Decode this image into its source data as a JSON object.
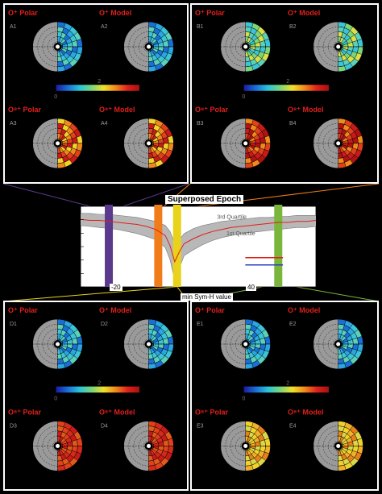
{
  "panels": {
    "A": {
      "color": "#5b3a8e",
      "maps": [
        {
          "label": "O⁺ Polar",
          "id": "A1",
          "palette": "cool"
        },
        {
          "label": "O⁺ Model",
          "id": "A2",
          "palette": "cool"
        },
        {
          "label": "O⁸⁺ Polar",
          "id": "A3",
          "palette": "hot"
        },
        {
          "label": "O⁸⁺ Model",
          "id": "A4",
          "palette": "hot"
        }
      ]
    },
    "B": {
      "color": "#f07d1a",
      "maps": [
        {
          "label": "O⁺ Polar",
          "id": "B1",
          "palette": "cool2"
        },
        {
          "label": "O⁺ Model",
          "id": "B2",
          "palette": "cool2"
        },
        {
          "label": "O⁸⁺ Polar",
          "id": "B3",
          "palette": "hotter"
        },
        {
          "label": "O⁸⁺ Model",
          "id": "B4",
          "palette": "hotter"
        }
      ]
    },
    "D": {
      "color": "#e8d21a",
      "maps": [
        {
          "label": "O⁺ Polar",
          "id": "D1",
          "palette": "cool"
        },
        {
          "label": "O⁺ Model",
          "id": "D2",
          "palette": "cool"
        },
        {
          "label": "O⁸⁺ Polar",
          "id": "D3",
          "palette": "hottest"
        },
        {
          "label": "O⁸⁺ Model",
          "id": "D4",
          "palette": "hottest"
        }
      ]
    },
    "E": {
      "color": "#7ab53c",
      "maps": [
        {
          "label": "O⁺ Polar",
          "id": "E1",
          "palette": "cool"
        },
        {
          "label": "O⁺ Model",
          "id": "E2",
          "palette": "cool"
        },
        {
          "label": "O⁸⁺ Polar",
          "id": "E3",
          "palette": "warm"
        },
        {
          "label": "O⁸⁺ Model",
          "id": "E4",
          "palette": "warm"
        }
      ]
    }
  },
  "colorbar_ticks": [
    "0",
    "2"
  ],
  "chart_data": {
    "type": "line",
    "title": "Superposed Epoch",
    "xlabel": "min Sym-H value",
    "x_ticks": [
      "-20",
      "40"
    ],
    "annotations": [
      "3rd Quartile",
      "1st Quartile"
    ],
    "series": [
      {
        "name": "Median",
        "color": "#e0201a"
      },
      {
        "name": "",
        "color": "#2a3fbf"
      }
    ],
    "x": [
      -40,
      -36,
      -32,
      -28,
      -24,
      -20,
      -16,
      -12,
      -8,
      -4,
      -2,
      0,
      2,
      4,
      8,
      12,
      16,
      20,
      24,
      28,
      32,
      36,
      40,
      44,
      48,
      52,
      56,
      60
    ],
    "median": [
      -8,
      -9,
      -9,
      -10,
      -11,
      -12,
      -13,
      -15,
      -18,
      -24,
      -34,
      -50,
      -40,
      -32,
      -27,
      -23,
      -20,
      -18,
      -16,
      -15,
      -14,
      -13,
      -12,
      -11,
      -11,
      -10,
      -10,
      -9
    ],
    "q3": [
      -2,
      -2,
      -3,
      -3,
      -4,
      -5,
      -6,
      -8,
      -10,
      -14,
      -20,
      -32,
      -28,
      -22,
      -17,
      -14,
      -12,
      -10,
      -9,
      -8,
      -7,
      -6,
      -6,
      -5,
      -5,
      -4,
      -4,
      -4
    ],
    "q1": [
      -14,
      -15,
      -16,
      -17,
      -18,
      -20,
      -22,
      -25,
      -28,
      -36,
      -48,
      -68,
      -56,
      -44,
      -38,
      -33,
      -29,
      -26,
      -24,
      -22,
      -21,
      -20,
      -19,
      -18,
      -17,
      -16,
      -16,
      -15
    ],
    "ylim": [
      -75,
      5
    ],
    "bands": [
      {
        "panel": "A",
        "x": -28,
        "color": "#5b3a8e"
      },
      {
        "panel": "B",
        "x": -7,
        "color": "#f07d1a"
      },
      {
        "panel": "D",
        "x": 1,
        "color": "#e8d21a"
      },
      {
        "panel": "E",
        "x": 44,
        "color": "#7ab53c"
      }
    ]
  }
}
